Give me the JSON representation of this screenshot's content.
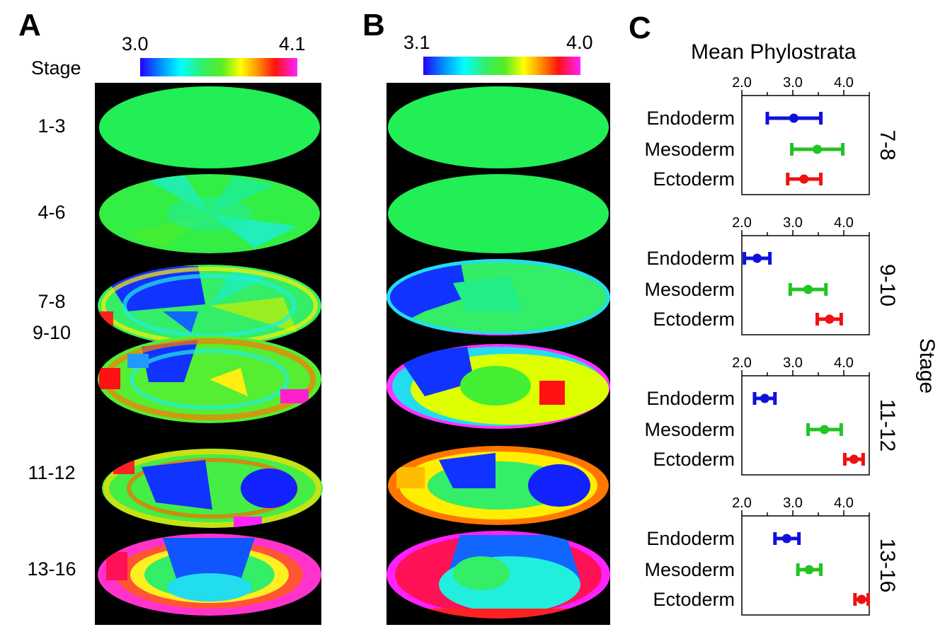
{
  "panels": {
    "A": {
      "letter": "A",
      "stage_header": "Stage",
      "colorbar": {
        "min_label": "3.0",
        "max_label": "4.1",
        "min": 3.0,
        "max": 4.1
      },
      "stages": [
        "1-3",
        "4-6",
        "7-8",
        "9-10",
        "11-12",
        "13-16"
      ]
    },
    "B": {
      "letter": "B",
      "colorbar": {
        "min_label": "3.1",
        "max_label": "4.0",
        "min": 3.1,
        "max": 4.0
      }
    },
    "C": {
      "letter": "C",
      "title": "Mean Phylostrata",
      "side_label": "Stage"
    }
  },
  "colors": {
    "endoderm": "#1010dd",
    "mesoderm": "#22c422",
    "ectoderm": "#ee1111",
    "embryo_bg": "#000000",
    "uniform": "#22ee55"
  },
  "chart_data": {
    "type": "scatter",
    "title": "Mean Phylostrata",
    "ylabel": "Stage",
    "xlim": [
      2.0,
      4.5
    ],
    "xticks": [
      "2.0",
      "3.0",
      "4.0"
    ],
    "categories": [
      "Endoderm",
      "Mesoderm",
      "Ectoderm"
    ],
    "subplots": [
      {
        "stage": "7-8",
        "series": [
          {
            "name": "Endoderm",
            "mean": 3.02,
            "low": 2.5,
            "high": 3.55,
            "color": "#1010dd"
          },
          {
            "name": "Mesoderm",
            "mean": 3.48,
            "low": 2.98,
            "high": 3.98,
            "color": "#22c422"
          },
          {
            "name": "Ectoderm",
            "mean": 3.22,
            "low": 2.9,
            "high": 3.55,
            "color": "#ee1111"
          }
        ]
      },
      {
        "stage": "9-10",
        "series": [
          {
            "name": "Endoderm",
            "mean": 2.3,
            "low": 2.05,
            "high": 2.55,
            "color": "#1010dd"
          },
          {
            "name": "Mesoderm",
            "mean": 3.3,
            "low": 2.95,
            "high": 3.65,
            "color": "#22c422"
          },
          {
            "name": "Ectoderm",
            "mean": 3.72,
            "low": 3.48,
            "high": 3.95,
            "color": "#ee1111"
          }
        ]
      },
      {
        "stage": "11-12",
        "series": [
          {
            "name": "Endoderm",
            "mean": 2.45,
            "low": 2.25,
            "high": 2.65,
            "color": "#1010dd"
          },
          {
            "name": "Mesoderm",
            "mean": 3.62,
            "low": 3.3,
            "high": 3.95,
            "color": "#22c422"
          },
          {
            "name": "Ectoderm",
            "mean": 4.2,
            "low": 4.02,
            "high": 4.38,
            "color": "#ee1111"
          }
        ]
      },
      {
        "stage": "13-16",
        "series": [
          {
            "name": "Endoderm",
            "mean": 2.88,
            "low": 2.65,
            "high": 3.12,
            "color": "#1010dd"
          },
          {
            "name": "Mesoderm",
            "mean": 3.32,
            "low": 3.1,
            "high": 3.55,
            "color": "#22c422"
          },
          {
            "name": "Ectoderm",
            "mean": 4.35,
            "low": 4.22,
            "high": 4.48,
            "color": "#ee1111"
          }
        ]
      }
    ]
  }
}
